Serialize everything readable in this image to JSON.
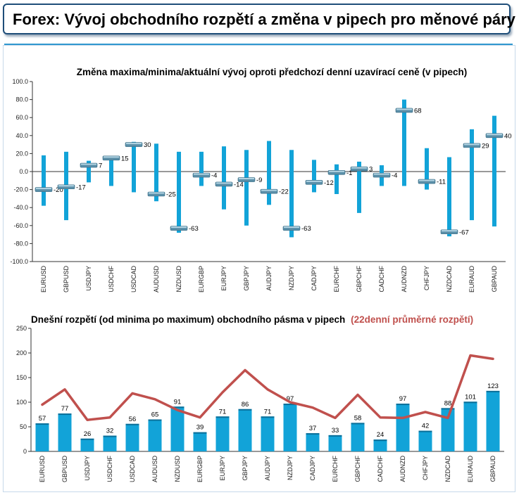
{
  "header": {
    "title": "Forex: Vývoj obchodního rozpětí a změna v pipech pro měnové páry"
  },
  "colors": {
    "bar": "#12a3d8",
    "marker": "#5b8fa8",
    "line": "#c0504d",
    "axis": "#333333",
    "title_red": "#c0504d"
  },
  "chart_data": [
    {
      "type": "bar",
      "title": "Změna maxima/minima/aktuální vývoj oproti předchozí denní uzavírací ceně (v pipech)",
      "categories": [
        "EURUSD",
        "GBPUSD",
        "USDJPY",
        "USDCHF",
        "USDCAD",
        "AUDUSD",
        "NZDUSD",
        "EURGBP",
        "EURJPY",
        "GBPJPY",
        "AUDJPY",
        "NZDJPY",
        "CADJPY",
        "EURCHF",
        "GBPCHF",
        "CADCHF",
        "AUDNZD",
        "CHFJPY",
        "NZDCAD",
        "EURAUD",
        "GBPAUD"
      ],
      "series": [
        {
          "name": "",
          "high": [
            18,
            22,
            12,
            17,
            33,
            31,
            22,
            22,
            28,
            24,
            34,
            24,
            13,
            8,
            11,
            7,
            80,
            26,
            16,
            47,
            62
          ],
          "low": [
            -38,
            -54,
            -12,
            -16,
            -23,
            -33,
            -68,
            -16,
            -42,
            -60,
            -37,
            -73,
            -23,
            -25,
            -46,
            -16,
            -16,
            -20,
            -72,
            -54,
            -61
          ],
          "values": [
            -20,
            -17,
            7,
            15,
            30,
            -25,
            -63,
            -4,
            -14,
            -9,
            -22,
            -63,
            -12,
            -1,
            3,
            -4,
            68,
            -11,
            -67,
            29,
            40
          ]
        }
      ],
      "ylim": [
        -100,
        100
      ],
      "yticks": [
        "100.0",
        "80.0",
        "60.0",
        "40.0",
        "20.0",
        "0.0",
        "-20.0",
        "-40.0",
        "-60.0",
        "-80.0",
        "-100.0"
      ],
      "grid": false
    },
    {
      "type": "bar",
      "title": "Dnešní rozpětí (od minima po maximum) obchodního pásma v pipech",
      "title_red": "(22denní průměrné rozpětí)",
      "categories": [
        "EURUSD",
        "GBPUSD",
        "USDJPY",
        "USDCHF",
        "USDCAD",
        "AUDUSD",
        "NZDUSD",
        "EURGBP",
        "EURJPY",
        "GBPJPY",
        "AUDJPY",
        "NZDJPY",
        "CADJPY",
        "EURCHF",
        "GBPCHF",
        "CADCHF",
        "AUDNZD",
        "CHFJPY",
        "NZDCAD",
        "EURAUD",
        "GBPAUD"
      ],
      "series": [
        {
          "name": "",
          "values": [
            57,
            77,
            26,
            32,
            56,
            65,
            91,
            39,
            71,
            86,
            71,
            97,
            37,
            33,
            58,
            24,
            97,
            42,
            88,
            101,
            123
          ]
        },
        {
          "name": "",
          "type": "line",
          "values": [
            95,
            126,
            64,
            69,
            118,
            106,
            84,
            69,
            120,
            165,
            126,
            100,
            89,
            68,
            115,
            69,
            68,
            80,
            68,
            195,
            188
          ]
        }
      ],
      "ylim": [
        0,
        250
      ],
      "yticks": [
        "250",
        "200",
        "150",
        "100",
        "50",
        "0"
      ],
      "grid": false
    }
  ]
}
